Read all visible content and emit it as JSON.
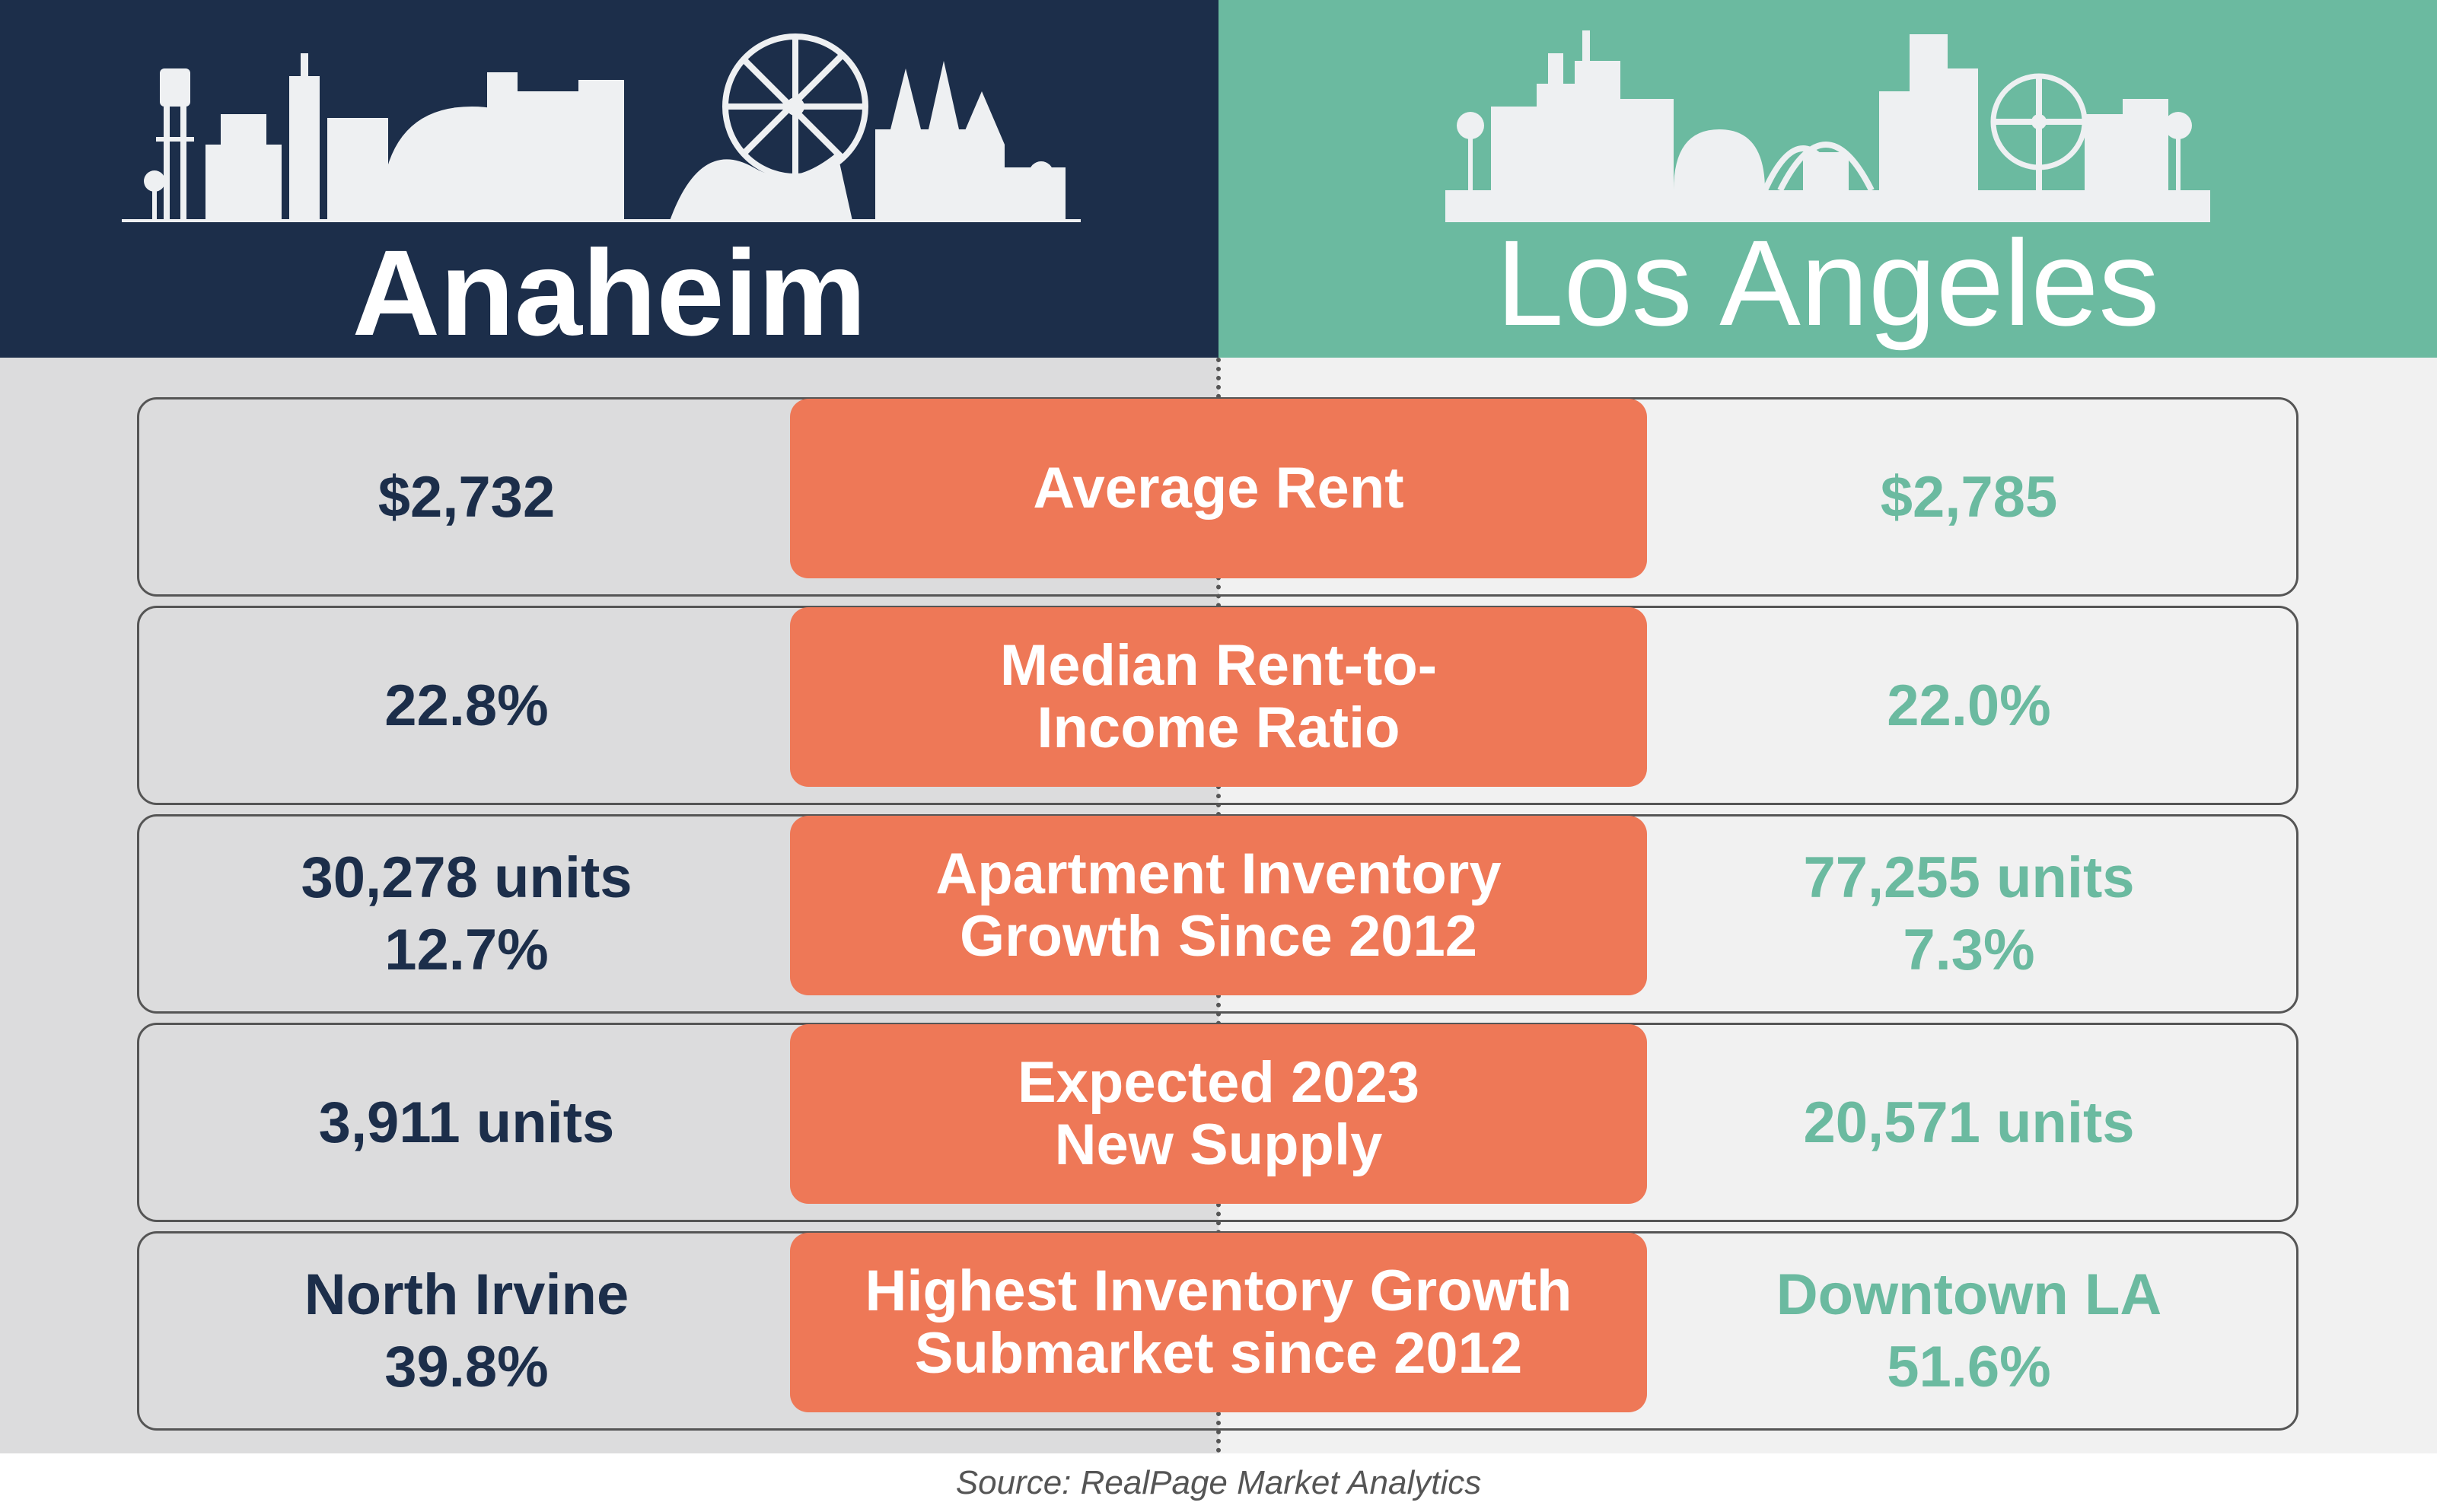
{
  "cities": {
    "left": {
      "name": "Anaheim",
      "color": "#1c2e4a"
    },
    "right": {
      "name": "Los Angeles",
      "color": "#6bbaa0"
    }
  },
  "accent_color": "#ee7857",
  "rows": [
    {
      "label": [
        "Average Rent"
      ],
      "left": [
        "$2,732"
      ],
      "right": [
        "$2,785"
      ]
    },
    {
      "label": [
        "Median Rent-to-",
        "Income Ratio"
      ],
      "left": [
        "22.8%"
      ],
      "right": [
        "22.0%"
      ]
    },
    {
      "label": [
        "Apartment Inventory",
        "Growth Since 2012"
      ],
      "left": [
        "30,278 units",
        "12.7%"
      ],
      "right": [
        "77,255 units",
        "7.3%"
      ]
    },
    {
      "label": [
        "Expected 2023",
        "New Supply"
      ],
      "left": [
        "3,911 units"
      ],
      "right": [
        "20,571 units"
      ]
    },
    {
      "label": [
        "Highest Inventory Growth",
        "Submarket since 2012"
      ],
      "left": [
        "North Irvine",
        "39.8%"
      ],
      "right": [
        "Downtown LA",
        "51.6%"
      ]
    }
  ],
  "source": "Source: RealPage Market Analytics"
}
